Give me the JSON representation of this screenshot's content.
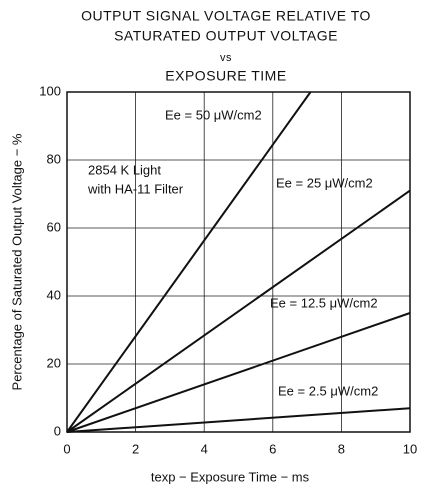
{
  "chart_data": {
    "type": "line",
    "title": [
      "OUTPUT SIGNAL VOLTAGE RELATIVE TO",
      "SATURATED OUTPUT VOLTAGE",
      "vs",
      "EXPOSURE TIME"
    ],
    "x_label": "texp − Exposure Time − ms",
    "y_label": "Percentage of Saturated Output Voltage − %",
    "annotation": [
      "2854 K Light",
      "with HA-11 Filter"
    ],
    "xlim": [
      0,
      10
    ],
    "ylim": [
      0,
      100
    ],
    "xticks": [
      0,
      2,
      4,
      6,
      8,
      10
    ],
    "yticks": [
      0,
      20,
      40,
      60,
      80,
      100
    ],
    "grid": true,
    "series": [
      {
        "name": "Ee = 50 μW/cm2",
        "color": "#111111",
        "x": [
          0,
          7.1
        ],
        "values": [
          0,
          100
        ]
      },
      {
        "name": "Ee = 25 μW/cm2",
        "color": "#111111",
        "x": [
          0,
          10
        ],
        "values": [
          0,
          71
        ]
      },
      {
        "name": "Ee = 12.5 μW/cm2",
        "color": "#111111",
        "x": [
          0,
          10
        ],
        "values": [
          0,
          35
        ]
      },
      {
        "name": "Ee = 2.5 μW/cm2",
        "color": "#111111",
        "x": [
          0,
          10
        ],
        "values": [
          0,
          7
        ]
      }
    ]
  }
}
